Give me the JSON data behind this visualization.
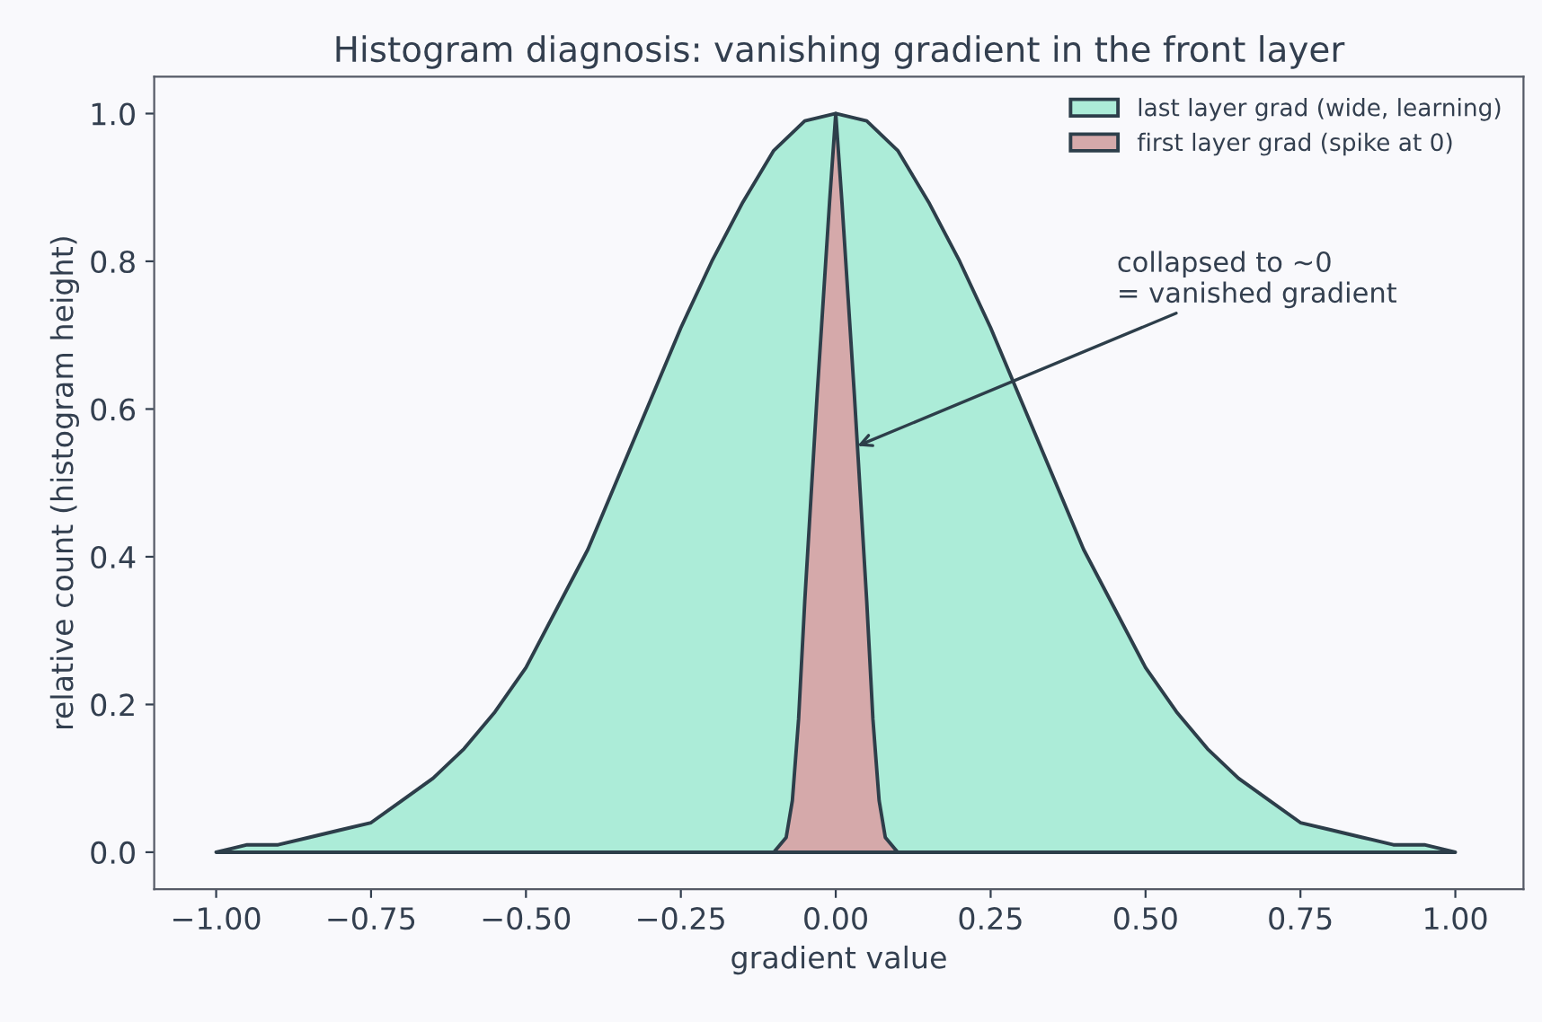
{
  "chart_data": {
    "type": "area",
    "title": "Histogram diagnosis: vanishing gradient in the front layer",
    "xlabel": "gradient value",
    "ylabel": "relative count (histogram height)",
    "series": [
      {
        "name": "last layer grad (wide, learning)",
        "color": "#5fdfb4",
        "x": [
          -1.0,
          -0.95,
          -0.9,
          -0.85,
          -0.8,
          -0.75,
          -0.7,
          -0.65,
          -0.6,
          -0.55,
          -0.5,
          -0.45,
          -0.4,
          -0.35,
          -0.3,
          -0.25,
          -0.2,
          -0.15,
          -0.1,
          -0.05,
          0.0,
          0.05,
          0.1,
          0.15,
          0.2,
          0.25,
          0.3,
          0.35,
          0.4,
          0.45,
          0.5,
          0.55,
          0.6,
          0.65,
          0.7,
          0.75,
          0.8,
          0.85,
          0.9,
          0.95,
          1.0
        ],
        "values": [
          0.0,
          0.01,
          0.01,
          0.02,
          0.03,
          0.04,
          0.07,
          0.1,
          0.14,
          0.19,
          0.25,
          0.33,
          0.41,
          0.51,
          0.61,
          0.71,
          0.8,
          0.88,
          0.95,
          0.99,
          1.0,
          0.99,
          0.95,
          0.88,
          0.8,
          0.71,
          0.61,
          0.51,
          0.41,
          0.33,
          0.25,
          0.19,
          0.14,
          0.1,
          0.07,
          0.04,
          0.03,
          0.02,
          0.01,
          0.01,
          0.0
        ]
      },
      {
        "name": "first layer grad (spike at 0)",
        "color": "#d5a9aa",
        "x": [
          -0.1,
          -0.09,
          -0.08,
          -0.07,
          -0.06,
          -0.05,
          -0.04,
          -0.03,
          -0.02,
          -0.01,
          0.0,
          0.01,
          0.02,
          0.03,
          0.04,
          0.05,
          0.06,
          0.07,
          0.08,
          0.09,
          0.1
        ],
        "values": [
          0.0,
          0.01,
          0.02,
          0.07,
          0.18,
          0.34,
          0.48,
          0.62,
          0.75,
          0.88,
          1.0,
          0.88,
          0.75,
          0.62,
          0.48,
          0.34,
          0.18,
          0.07,
          0.02,
          0.01,
          0.0
        ]
      }
    ],
    "annotations": [
      {
        "text": "collapsed to ~0\n= vanished gradient",
        "x": 0.035,
        "y": 0.55
      }
    ],
    "xlim": [
      -1.1,
      1.11
    ],
    "ylim": [
      -0.05,
      1.05
    ],
    "xticks": [
      {
        "value": -1.0,
        "label": "−1.00"
      },
      {
        "value": -0.75,
        "label": "−0.75"
      },
      {
        "value": -0.5,
        "label": "−0.50"
      },
      {
        "value": -0.25,
        "label": "−0.25"
      },
      {
        "value": 0.0,
        "label": "0.00"
      },
      {
        "value": 0.25,
        "label": "0.25"
      },
      {
        "value": 0.5,
        "label": "0.50"
      },
      {
        "value": 0.75,
        "label": "0.75"
      },
      {
        "value": 1.0,
        "label": "1.00"
      }
    ],
    "yticks": [
      {
        "value": 0.0,
        "label": "0.0"
      },
      {
        "value": 0.2,
        "label": "0.2"
      },
      {
        "value": 0.4,
        "label": "0.4"
      },
      {
        "value": 0.6,
        "label": "0.6"
      },
      {
        "value": 0.8,
        "label": "0.8"
      },
      {
        "value": 1.0,
        "label": "1.0"
      }
    ],
    "grid": false,
    "legend": "top right"
  }
}
